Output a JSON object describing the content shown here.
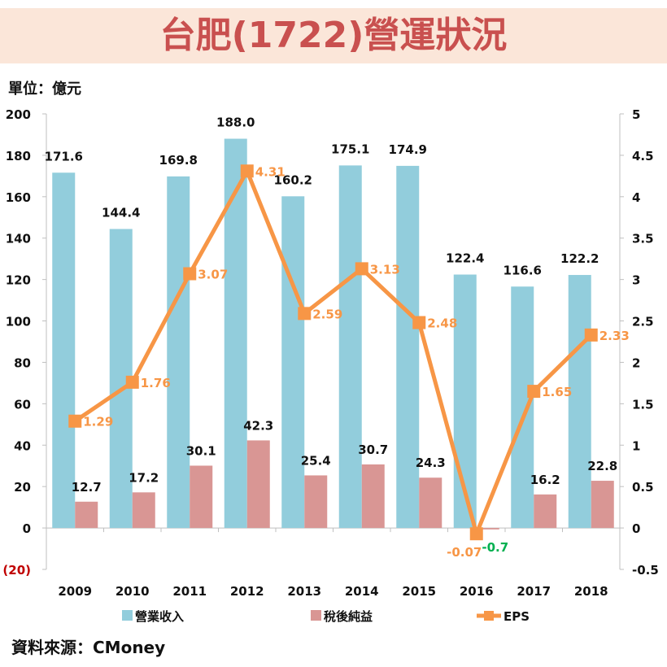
{
  "title": "台肥(1722)營運狀況",
  "unit_label": "單位：億元",
  "source": "資料來源：CMoney",
  "chart_data": {
    "type": "bar+line",
    "categories": [
      "2009",
      "2010",
      "2011",
      "2012",
      "2013",
      "2014",
      "2015",
      "2016",
      "2017",
      "2018"
    ],
    "left_axis": {
      "ylim": [
        -20,
        200
      ],
      "ticks": [
        "(20)",
        "0",
        "20",
        "40",
        "60",
        "80",
        "100",
        "120",
        "140",
        "160",
        "180",
        "200"
      ],
      "tick_values": [
        -20,
        0,
        20,
        40,
        60,
        80,
        100,
        120,
        140,
        160,
        180,
        200
      ]
    },
    "right_axis": {
      "ylim": [
        -0.5,
        5
      ],
      "ticks": [
        "-0.5",
        "0",
        "0.5",
        "1",
        "1.5",
        "2",
        "2.5",
        "3",
        "3.5",
        "4",
        "4.5",
        "5"
      ],
      "tick_values": [
        -0.5,
        0,
        0.5,
        1,
        1.5,
        2,
        2.5,
        3,
        3.5,
        4,
        4.5,
        5
      ]
    },
    "series": [
      {
        "name": "營業收入",
        "type": "bar",
        "axis": "left",
        "color": "#92cddc",
        "values": [
          171.6,
          144.4,
          169.8,
          188.0,
          160.2,
          175.1,
          174.9,
          122.4,
          116.6,
          122.2
        ],
        "labels": [
          "171.6",
          "144.4",
          "169.8",
          "188.0",
          "160.2",
          "175.1",
          "174.9",
          "122.4",
          "116.6",
          "122.2"
        ]
      },
      {
        "name": "稅後純益",
        "type": "bar",
        "axis": "left",
        "color": "#d99694",
        "values": [
          12.7,
          17.2,
          30.1,
          42.3,
          25.4,
          30.7,
          24.3,
          -0.7,
          16.2,
          22.8
        ],
        "labels": [
          "12.7",
          "17.2",
          "30.1",
          "42.3",
          "25.4",
          "30.7",
          "24.3",
          "-0.7",
          "16.2",
          "22.8"
        ]
      },
      {
        "name": "EPS",
        "type": "line",
        "axis": "right",
        "color": "#f79646",
        "values": [
          1.29,
          1.76,
          3.07,
          4.31,
          2.59,
          3.13,
          2.48,
          -0.07,
          1.65,
          2.33
        ],
        "labels": [
          "1.29",
          "1.76",
          "3.07",
          "4.31",
          "2.59",
          "3.13",
          "2.48",
          "-0.07",
          "1.65",
          "2.33"
        ]
      }
    ],
    "colors": {
      "negative_tick": "#c00000",
      "negative_label": "#00b050"
    },
    "legend": "bottom"
  }
}
